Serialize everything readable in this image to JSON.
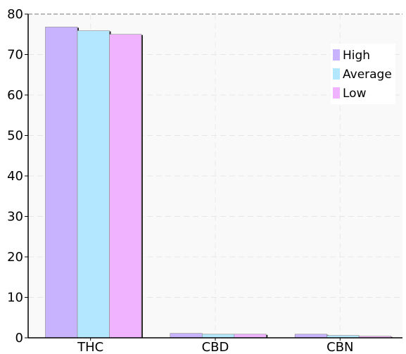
{
  "chart_data": {
    "type": "bar",
    "categories": [
      "THC",
      "CBD",
      "CBN"
    ],
    "series": [
      {
        "name": "High",
        "values": [
          76.8,
          1.1,
          0.9
        ],
        "color": "#c8b3ff"
      },
      {
        "name": "Average",
        "values": [
          75.9,
          0.9,
          0.6
        ],
        "color": "#b3e6ff"
      },
      {
        "name": "Low",
        "values": [
          75.0,
          0.9,
          0.4
        ],
        "color": "#efb3ff"
      }
    ],
    "title": "",
    "xlabel": "",
    "ylabel": "",
    "ylim": [
      0,
      80
    ],
    "yticks": [
      0,
      10,
      20,
      30,
      40,
      50,
      60,
      70,
      80
    ],
    "grid": true,
    "legend": "top-right"
  }
}
